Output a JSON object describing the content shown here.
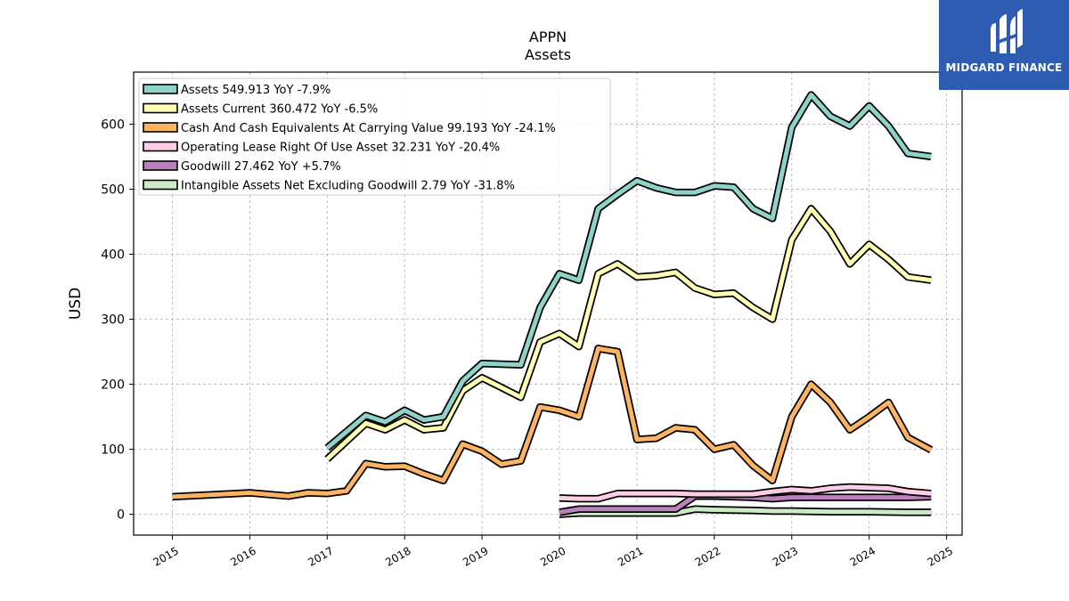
{
  "chart_data": {
    "type": "line",
    "title": "APPN",
    "subtitle": "Assets",
    "xlabel": "",
    "ylabel": "USD",
    "xlim": [
      2014.5,
      2025.2
    ],
    "ylim": [
      -32,
      680
    ],
    "xticks": [
      "2015",
      "2016",
      "2017",
      "2018",
      "2019",
      "2020",
      "2021",
      "2022",
      "2023",
      "2024",
      "2025"
    ],
    "yticks": [
      "0",
      "100",
      "200",
      "300",
      "400",
      "500",
      "600"
    ],
    "grid": true,
    "legend_position": "top-left",
    "series": [
      {
        "name": "Assets",
        "legend": "Assets  549.913 YoY -7.9%",
        "color": "#8dd3c7",
        "points": [
          [
            2017.0,
            102
          ],
          [
            2017.5,
            152
          ],
          [
            2017.75,
            142
          ],
          [
            2018.0,
            160
          ],
          [
            2018.25,
            145
          ],
          [
            2018.5,
            150
          ],
          [
            2018.75,
            205
          ],
          [
            2019.0,
            232
          ],
          [
            2019.5,
            230
          ],
          [
            2019.75,
            318
          ],
          [
            2020.0,
            370
          ],
          [
            2020.25,
            360
          ],
          [
            2020.5,
            470
          ],
          [
            2020.75,
            492
          ],
          [
            2021.0,
            513
          ],
          [
            2021.25,
            502
          ],
          [
            2021.5,
            495
          ],
          [
            2021.75,
            495
          ],
          [
            2022.0,
            505
          ],
          [
            2022.25,
            503
          ],
          [
            2022.5,
            470
          ],
          [
            2022.75,
            455
          ],
          [
            2023.0,
            595
          ],
          [
            2023.25,
            645
          ],
          [
            2023.5,
            612
          ],
          [
            2023.75,
            597
          ],
          [
            2024.0,
            628
          ],
          [
            2024.25,
            597
          ],
          [
            2024.5,
            555
          ],
          [
            2024.8,
            550
          ]
        ]
      },
      {
        "name": "Assets Current",
        "legend": "Assets Current  360.472 YoY -6.5%",
        "color": "#ffffb3",
        "points": [
          [
            2017.0,
            85
          ],
          [
            2017.5,
            140
          ],
          [
            2017.75,
            130
          ],
          [
            2018.0,
            145
          ],
          [
            2018.25,
            130
          ],
          [
            2018.5,
            133
          ],
          [
            2018.75,
            190
          ],
          [
            2019.0,
            210
          ],
          [
            2019.25,
            195
          ],
          [
            2019.5,
            180
          ],
          [
            2019.75,
            265
          ],
          [
            2020.0,
            278
          ],
          [
            2020.25,
            258
          ],
          [
            2020.5,
            370
          ],
          [
            2020.75,
            385
          ],
          [
            2021.0,
            365
          ],
          [
            2021.25,
            367
          ],
          [
            2021.5,
            372
          ],
          [
            2021.75,
            348
          ],
          [
            2022.0,
            338
          ],
          [
            2022.25,
            340
          ],
          [
            2022.5,
            318
          ],
          [
            2022.75,
            300
          ],
          [
            2023.0,
            422
          ],
          [
            2023.25,
            470
          ],
          [
            2023.5,
            435
          ],
          [
            2023.75,
            385
          ],
          [
            2024.0,
            415
          ],
          [
            2024.25,
            392
          ],
          [
            2024.5,
            365
          ],
          [
            2024.8,
            360
          ]
        ]
      },
      {
        "name": "Cash And Cash Equivalents At Carrying Value",
        "legend": "Cash And Cash Equivalents At Carrying Value  99.193 YoY -24.1%",
        "color": "#fdb462",
        "points": [
          [
            2015.0,
            27
          ],
          [
            2015.5,
            30
          ],
          [
            2016.0,
            33
          ],
          [
            2016.5,
            28
          ],
          [
            2016.75,
            33
          ],
          [
            2017.0,
            32
          ],
          [
            2017.25,
            36
          ],
          [
            2017.5,
            78
          ],
          [
            2017.75,
            73
          ],
          [
            2018.0,
            74
          ],
          [
            2018.25,
            62
          ],
          [
            2018.5,
            52
          ],
          [
            2018.75,
            108
          ],
          [
            2019.0,
            97
          ],
          [
            2019.25,
            77
          ],
          [
            2019.5,
            82
          ],
          [
            2019.75,
            165
          ],
          [
            2020.0,
            160
          ],
          [
            2020.25,
            150
          ],
          [
            2020.5,
            255
          ],
          [
            2020.75,
            250
          ],
          [
            2021.0,
            115
          ],
          [
            2021.25,
            117
          ],
          [
            2021.5,
            133
          ],
          [
            2021.75,
            130
          ],
          [
            2022.0,
            100
          ],
          [
            2022.25,
            107
          ],
          [
            2022.5,
            75
          ],
          [
            2022.75,
            52
          ],
          [
            2023.0,
            150
          ],
          [
            2023.25,
            200
          ],
          [
            2023.5,
            172
          ],
          [
            2023.75,
            130
          ],
          [
            2024.0,
            150
          ],
          [
            2024.25,
            172
          ],
          [
            2024.5,
            118
          ],
          [
            2024.8,
            99
          ]
        ]
      },
      {
        "name": "Operating Lease Right Of Use Asset",
        "legend": "Operating Lease Right Of Use Asset  32.231 YoY -20.4%",
        "color": "#fccde5",
        "points": [
          [
            2020.0,
            25
          ],
          [
            2020.25,
            24
          ],
          [
            2020.5,
            24
          ],
          [
            2020.75,
            32
          ],
          [
            2021.0,
            32
          ],
          [
            2021.5,
            32
          ],
          [
            2021.75,
            31
          ],
          [
            2022.0,
            31
          ],
          [
            2022.5,
            31
          ],
          [
            2022.75,
            35
          ],
          [
            2023.0,
            38
          ],
          [
            2023.25,
            36
          ],
          [
            2023.5,
            40
          ],
          [
            2023.75,
            42
          ],
          [
            2024.0,
            41
          ],
          [
            2024.25,
            40
          ],
          [
            2024.5,
            35
          ],
          [
            2024.8,
            32
          ]
        ]
      },
      {
        "name": "Goodwill",
        "legend": "Goodwill  27.462 YoY +5.7%",
        "color": "#bc80bd",
        "points": [
          [
            2020.0,
            3
          ],
          [
            2020.25,
            8
          ],
          [
            2020.5,
            8
          ],
          [
            2021.0,
            8
          ],
          [
            2021.5,
            8
          ],
          [
            2021.75,
            28
          ],
          [
            2022.0,
            28
          ],
          [
            2022.5,
            26
          ],
          [
            2022.75,
            24
          ],
          [
            2023.0,
            26
          ],
          [
            2023.5,
            26
          ],
          [
            2024.0,
            26
          ],
          [
            2024.5,
            26
          ],
          [
            2024.8,
            27
          ]
        ]
      },
      {
        "name": "Intangible Assets Net Excluding Goodwill",
        "legend": "Intangible Assets Net Excluding Goodwill  2.79 YoY -31.8%",
        "color": "#ccebc5",
        "points": [
          [
            2020.0,
            0
          ],
          [
            2020.25,
            2
          ],
          [
            2020.5,
            2
          ],
          [
            2021.0,
            2
          ],
          [
            2021.5,
            2
          ],
          [
            2021.75,
            8
          ],
          [
            2022.0,
            7
          ],
          [
            2022.5,
            6
          ],
          [
            2022.75,
            5
          ],
          [
            2023.0,
            5
          ],
          [
            2023.5,
            4
          ],
          [
            2024.0,
            4
          ],
          [
            2024.5,
            3
          ],
          [
            2024.8,
            3
          ]
        ]
      }
    ]
  },
  "logo": {
    "text": "MIDGARD FINANCE",
    "color": "#2d5cb0"
  }
}
